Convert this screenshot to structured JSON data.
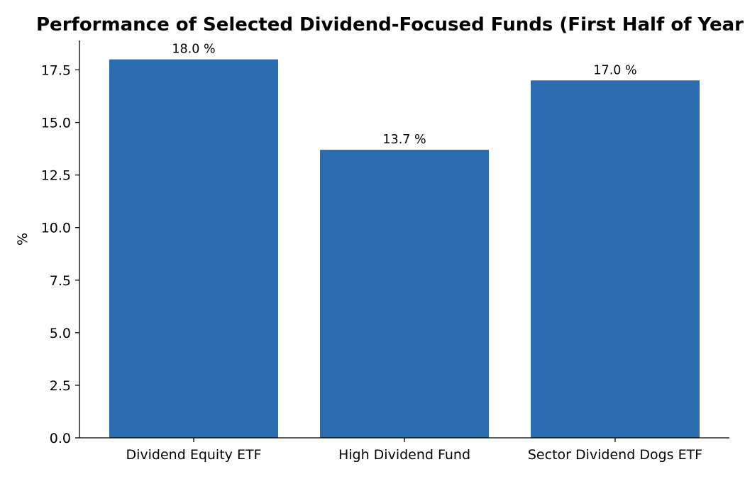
{
  "chart_data": {
    "type": "bar",
    "title": "Performance of Selected Dividend-Focused Funds (First Half of Year)",
    "xlabel": "",
    "ylabel": "%",
    "categories": [
      "Dividend Equity ETF",
      "High Dividend Fund",
      "Sector Dividend Dogs ETF"
    ],
    "values": [
      18.0,
      13.7,
      17.0
    ],
    "data_labels": [
      "18.0 %",
      "13.7 %",
      "17.0 %"
    ],
    "ylim": [
      0,
      18.9
    ],
    "yticks": [
      0.0,
      2.5,
      5.0,
      7.5,
      10.0,
      12.5,
      15.0,
      17.5
    ],
    "ytick_labels": [
      "0.0",
      "2.5",
      "5.0",
      "7.5",
      "10.0",
      "12.5",
      "15.0",
      "17.5"
    ],
    "bar_color": "#2b6cb0",
    "grid": false,
    "legend": "none"
  }
}
